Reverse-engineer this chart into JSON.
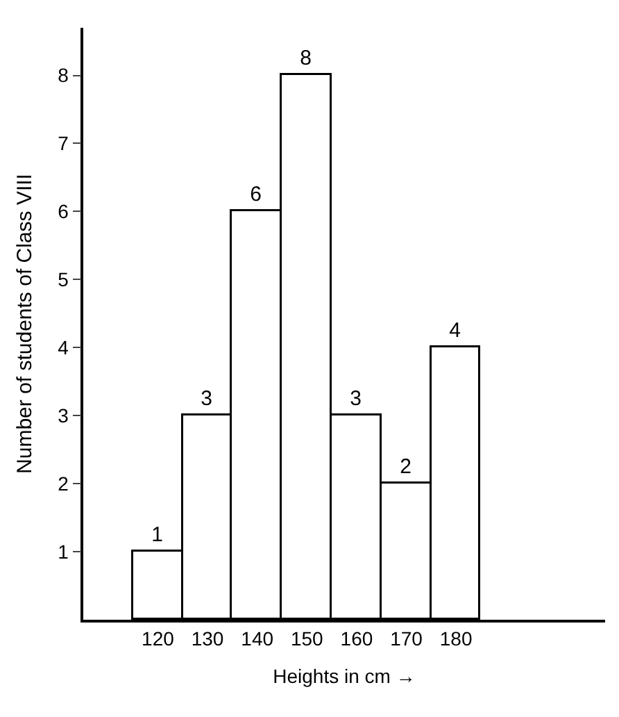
{
  "chart_data": {
    "type": "histogram",
    "xlabel": "Heights in cm →",
    "ylabel": "Number of students of Class VIII",
    "bins": [
      115,
      125,
      135,
      145,
      155,
      165,
      175,
      185
    ],
    "values": [
      1,
      3,
      6,
      8,
      3,
      2,
      4
    ],
    "color": "#ffffff",
    "xlim": [
      105,
      210
    ],
    "xticks": [
      120,
      130,
      140,
      150,
      160,
      170,
      180
    ],
    "ylim": [
      0,
      8.7
    ],
    "yticks": [
      1,
      2,
      3,
      4,
      5,
      6,
      7,
      8
    ],
    "data_labels": true
  }
}
